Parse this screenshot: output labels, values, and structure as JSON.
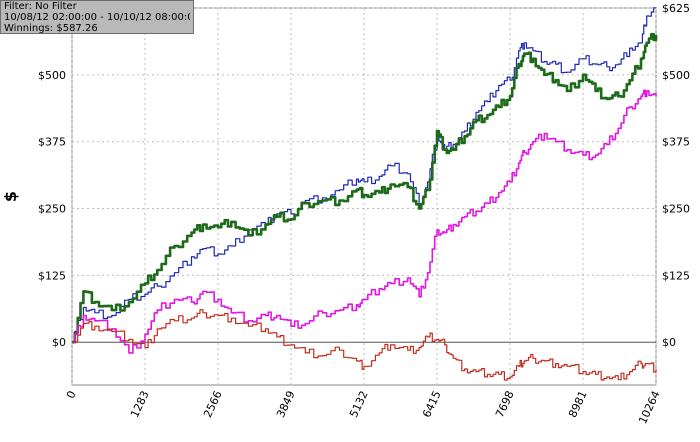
{
  "info": {
    "filter": "Filter: No Filter",
    "date_range": "10/08/12 02:00:00 - 10/10/12 08:00:00",
    "winnings": "Winnings: $587.26"
  },
  "chart_data": {
    "type": "line",
    "xlabel": "",
    "ylabel": "$",
    "xlim": [
      0,
      10264
    ],
    "ylim": [
      -80,
      625
    ],
    "x_ticks": [
      0,
      1283,
      2566,
      3849,
      5132,
      6415,
      7698,
      8981,
      10264
    ],
    "x_tick_labels": [
      "0",
      "1283",
      "2566",
      "3849",
      "5132",
      "6415",
      "7698",
      "8981",
      "10264"
    ],
    "y_ticks": [
      0,
      125,
      250,
      375,
      500,
      625
    ],
    "y_tick_labels": [
      "$0",
      "$125",
      "$250",
      "$375",
      "$500",
      "$625"
    ],
    "grid": true,
    "series": [
      {
        "color": "#1c26b4",
        "x": [
          0,
          200,
          400,
          700,
          1000,
          1283,
          1500,
          1800,
          2100,
          2300,
          2566,
          2800,
          3100,
          3400,
          3600,
          3849,
          4100,
          4400,
          4700,
          5000,
          5132,
          5400,
          5600,
          5900,
          6100,
          6250,
          6415,
          6550,
          6700,
          6900,
          7100,
          7300,
          7500,
          7698,
          7850,
          7950,
          8100,
          8300,
          8500,
          8700,
          8981,
          9200,
          9400,
          9600,
          9800,
          10000,
          10100,
          10264
        ],
        "values": [
          0,
          65,
          55,
          50,
          80,
          90,
          105,
          130,
          160,
          175,
          165,
          180,
          210,
          220,
          240,
          240,
          265,
          270,
          285,
          305,
          300,
          310,
          330,
          315,
          255,
          300,
          390,
          360,
          370,
          395,
          430,
          450,
          480,
          490,
          545,
          560,
          545,
          525,
          520,
          505,
          530,
          520,
          515,
          520,
          550,
          560,
          610,
          625
        ]
      },
      {
        "color": "#1d6b1a",
        "x": [
          0,
          200,
          400,
          700,
          1000,
          1283,
          1500,
          1800,
          2100,
          2300,
          2566,
          2800,
          3100,
          3400,
          3600,
          3849,
          4100,
          4400,
          4700,
          5000,
          5132,
          5400,
          5600,
          5900,
          6100,
          6250,
          6415,
          6550,
          6700,
          6900,
          7100,
          7300,
          7500,
          7698,
          7850,
          7950,
          8100,
          8300,
          8500,
          8700,
          8981,
          9200,
          9400,
          9600,
          9800,
          10000,
          10100,
          10264
        ],
        "values": [
          0,
          95,
          75,
          60,
          75,
          110,
          135,
          180,
          205,
          220,
          215,
          225,
          200,
          220,
          235,
          230,
          260,
          265,
          265,
          285,
          275,
          280,
          295,
          290,
          250,
          285,
          395,
          360,
          360,
          385,
          415,
          425,
          440,
          460,
          520,
          540,
          530,
          500,
          490,
          470,
          500,
          470,
          455,
          460,
          490,
          530,
          560,
          575
        ]
      },
      {
        "color": "#e216e2",
        "x": [
          0,
          200,
          400,
          700,
          1000,
          1283,
          1500,
          1800,
          2100,
          2300,
          2566,
          2800,
          3100,
          3400,
          3600,
          3849,
          4100,
          4400,
          4700,
          5000,
          5132,
          5400,
          5600,
          5900,
          6100,
          6250,
          6415,
          6550,
          6700,
          6900,
          7100,
          7300,
          7500,
          7698,
          7850,
          7950,
          8100,
          8300,
          8500,
          8700,
          8981,
          9200,
          9400,
          9600,
          9800,
          10000,
          10100,
          10264
        ],
        "values": [
          0,
          50,
          40,
          25,
          -20,
          15,
          60,
          80,
          75,
          95,
          80,
          55,
          40,
          50,
          50,
          30,
          35,
          55,
          60,
          70,
          80,
          100,
          110,
          120,
          85,
          130,
          210,
          205,
          220,
          235,
          245,
          260,
          280,
          300,
          335,
          355,
          375,
          390,
          375,
          360,
          350,
          350,
          370,
          400,
          440,
          460,
          470,
          460
        ]
      },
      {
        "color": "#c42a1c",
        "x": [
          0,
          200,
          400,
          700,
          1000,
          1283,
          1500,
          1800,
          2100,
          2300,
          2566,
          2800,
          3100,
          3400,
          3600,
          3849,
          4100,
          4400,
          4700,
          5000,
          5132,
          5400,
          5600,
          5900,
          6100,
          6250,
          6415,
          6550,
          6700,
          6900,
          7100,
          7300,
          7500,
          7698,
          7850,
          7950,
          8100,
          8300,
          8500,
          8700,
          8981,
          9200,
          9400,
          9600,
          9800,
          10000,
          10100,
          10264
        ],
        "values": [
          0,
          35,
          30,
          20,
          5,
          -10,
          25,
          40,
          45,
          55,
          50,
          45,
          30,
          25,
          10,
          -5,
          -20,
          -25,
          -15,
          -35,
          -45,
          -20,
          -5,
          -15,
          -10,
          10,
          5,
          -5,
          -30,
          -50,
          -55,
          -60,
          -60,
          -65,
          -45,
          -35,
          -30,
          -35,
          -40,
          -45,
          -55,
          -60,
          -65,
          -70,
          -55,
          -40,
          -40,
          -50
        ]
      }
    ]
  }
}
